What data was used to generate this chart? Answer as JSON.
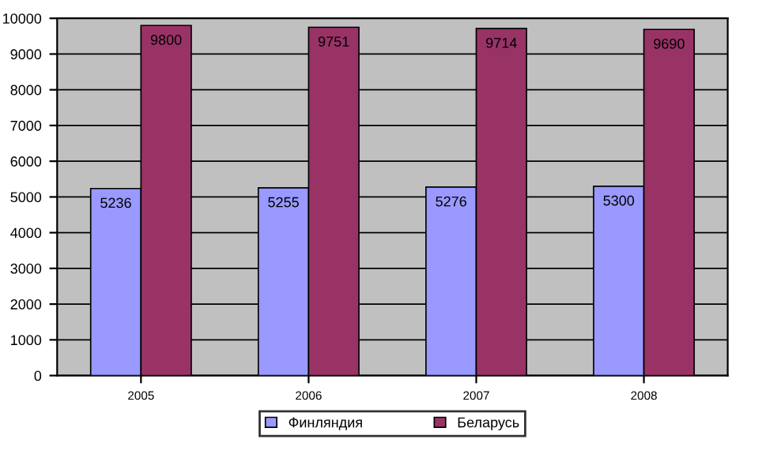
{
  "chart_data": {
    "type": "bar",
    "categories": [
      "2005",
      "2006",
      "2007",
      "2008"
    ],
    "series": [
      {
        "name": "Финляндия",
        "color": "#9999ff",
        "values": [
          5236,
          5255,
          5276,
          5300
        ]
      },
      {
        "name": "Беларусь",
        "color": "#993366",
        "values": [
          9800,
          9751,
          9714,
          9690
        ]
      }
    ],
    "ylim": [
      0,
      10000
    ],
    "yticks": [
      0,
      1000,
      2000,
      3000,
      4000,
      5000,
      6000,
      7000,
      8000,
      9000,
      10000
    ],
    "grid": "y",
    "legend": "bottom",
    "data_labels": true
  }
}
